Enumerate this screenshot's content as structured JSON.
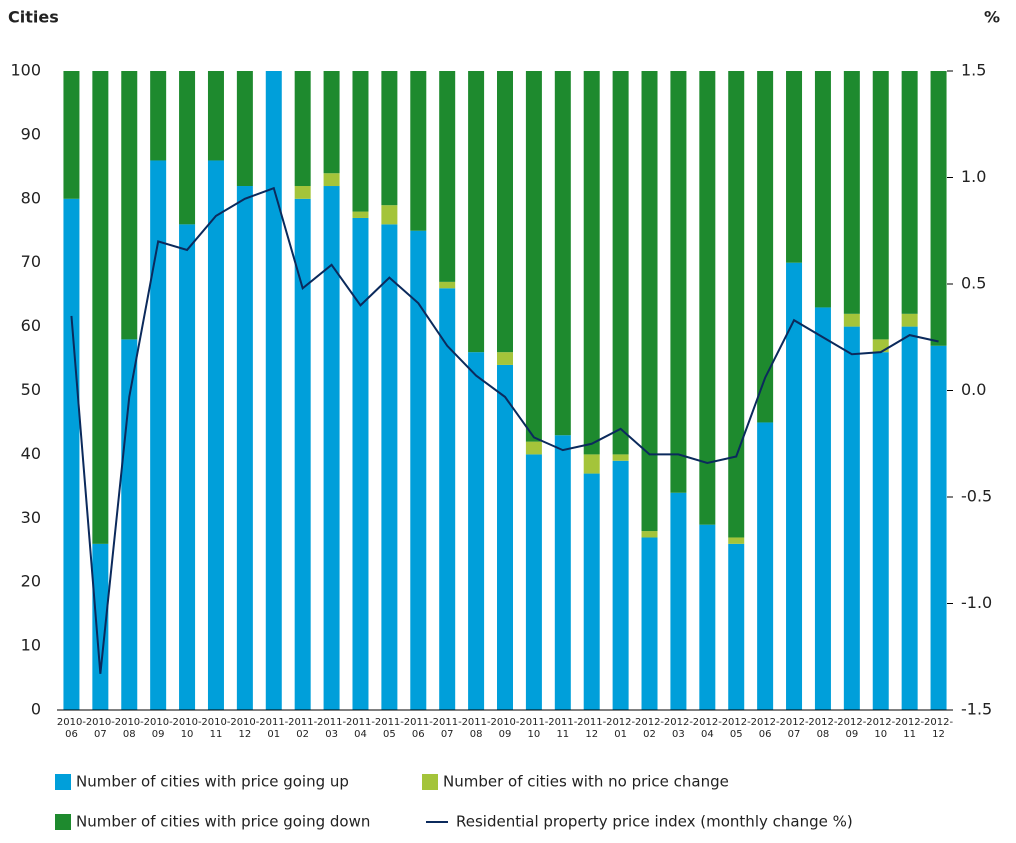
{
  "chart_data": {
    "type": "bar",
    "stacked": true,
    "y_label": "Cities",
    "y2_label": "%",
    "categories": [
      "2010-06",
      "2010-07",
      "2010-08",
      "2010-09",
      "2010-10",
      "2010-11",
      "2010-12",
      "2011-01",
      "2011-02",
      "2011-03",
      "2011-04",
      "2011-05",
      "2011-06",
      "2011-07",
      "2011-08",
      "2010-09",
      "2011-10",
      "2011-11",
      "2011-12",
      "2012-01",
      "2012-02",
      "2012-03",
      "2012-04",
      "2012-05",
      "2012-06",
      "2012-07",
      "2012-08",
      "2012-09",
      "2012-10",
      "2012-11",
      "2012-12"
    ],
    "series": [
      {
        "name": "Number of cities with price going up",
        "color": "#009fda",
        "values": [
          80,
          26,
          58,
          86,
          76,
          86,
          82,
          100,
          80,
          82,
          77,
          76,
          75,
          66,
          56,
          54,
          40,
          43,
          37,
          39,
          27,
          34,
          29,
          26,
          45,
          70,
          63,
          60,
          56,
          60,
          57
        ]
      },
      {
        "name": "Number of cities with no price change",
        "color": "#a4c43a",
        "values": [
          0,
          0,
          0,
          0,
          0,
          0,
          0,
          0,
          2,
          2,
          1,
          3,
          0,
          1,
          0,
          2,
          2,
          0,
          3,
          1,
          1,
          0,
          0,
          1,
          0,
          0,
          0,
          2,
          2,
          2,
          0
        ]
      },
      {
        "name": "Number of cities with price going down",
        "color": "#1e8a2e",
        "values": [
          20,
          74,
          42,
          14,
          24,
          14,
          18,
          0,
          18,
          16,
          22,
          21,
          25,
          33,
          44,
          44,
          58,
          57,
          60,
          60,
          72,
          66,
          71,
          73,
          55,
          30,
          37,
          38,
          42,
          38,
          43
        ]
      },
      {
        "name": "Residential property price index (monthly change %)",
        "color": "#0b2a5c",
        "type": "line",
        "axis": "y2",
        "values": [
          0.35,
          -1.33,
          -0.03,
          0.7,
          0.66,
          0.82,
          0.9,
          0.95,
          0.48,
          0.59,
          0.4,
          0.53,
          0.41,
          0.21,
          0.07,
          -0.03,
          -0.22,
          -0.28,
          -0.25,
          -0.18,
          -0.3,
          -0.3,
          -0.34,
          -0.31,
          0.06,
          0.33,
          0.25,
          0.17,
          0.18,
          0.26,
          0.23
        ]
      }
    ],
    "ylim": [
      0,
      100
    ],
    "yticks": [
      0,
      10,
      20,
      30,
      40,
      50,
      60,
      70,
      80,
      90,
      100
    ],
    "y2lim": [
      -1.5,
      1.5
    ],
    "y2ticks": [
      1.5,
      {
        "value": 1,
        "label": "1.0"
      },
      0.5,
      {
        "value": 0,
        "label": "0.0"
      },
      -0.5,
      {
        "value": -1,
        "label": "-1.0"
      },
      -1.5
    ],
    "grid": false
  }
}
